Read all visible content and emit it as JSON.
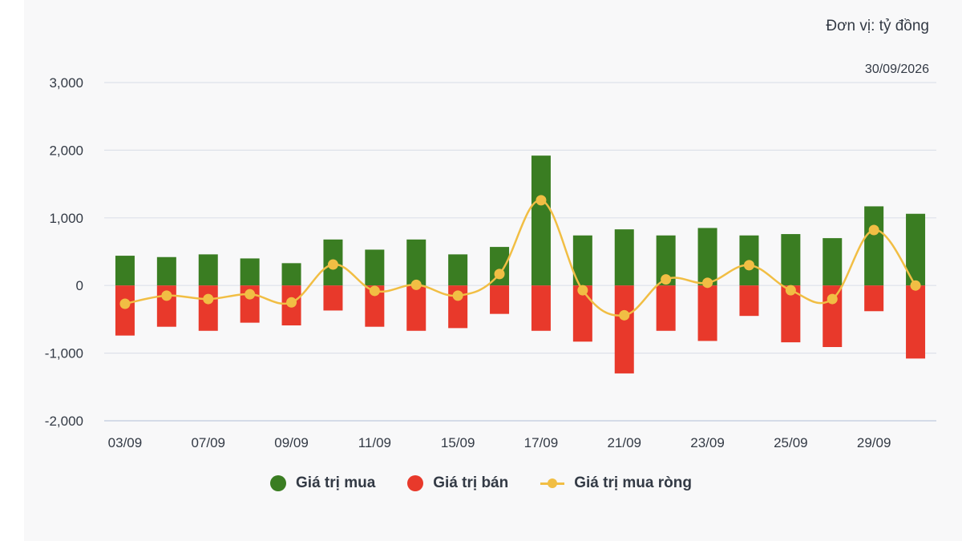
{
  "header": {
    "unit": "Đơn vị: tỷ đồng",
    "date": "30/09/2026"
  },
  "legend": {
    "buy": "Giá trị mua",
    "sell": "Giá trị bán",
    "net": "Giá trị mua ròng"
  },
  "colors": {
    "buy": "#3a7d22",
    "sell": "#e8392b",
    "net": "#f1be44",
    "grid": "#dde1ea",
    "axis_text": "#333a45"
  },
  "chart_data": {
    "type": "bar",
    "x_tick_labels": [
      "03/09",
      "07/09",
      "09/09",
      "11/09",
      "15/09",
      "17/09",
      "21/09",
      "23/09",
      "25/09",
      "29/09"
    ],
    "y_tick_labels": [
      "3,000",
      "2,000",
      "1,000",
      "0",
      "-1,000",
      "-2,000"
    ],
    "ylim": [
      -2000,
      3000
    ],
    "grid": true,
    "legend_position": "bottom",
    "series": [
      {
        "name": "Giá trị mua",
        "type": "bar",
        "values": [
          440,
          420,
          460,
          400,
          330,
          680,
          530,
          680,
          460,
          570,
          1920,
          740,
          830,
          740,
          850,
          740,
          760,
          700,
          1170,
          1060
        ]
      },
      {
        "name": "Giá trị bán",
        "type": "bar",
        "values": [
          -740,
          -610,
          -670,
          -550,
          -590,
          -370,
          -610,
          -670,
          -630,
          -420,
          -670,
          -830,
          -1300,
          -670,
          -820,
          -450,
          -840,
          -910,
          -380,
          -1080
        ]
      },
      {
        "name": "Giá trị mua ròng",
        "type": "line",
        "values": [
          -270,
          -150,
          -200,
          -130,
          -250,
          310,
          -80,
          10,
          -150,
          170,
          1260,
          -70,
          -440,
          90,
          40,
          300,
          -70,
          -200,
          820,
          0
        ]
      }
    ]
  }
}
